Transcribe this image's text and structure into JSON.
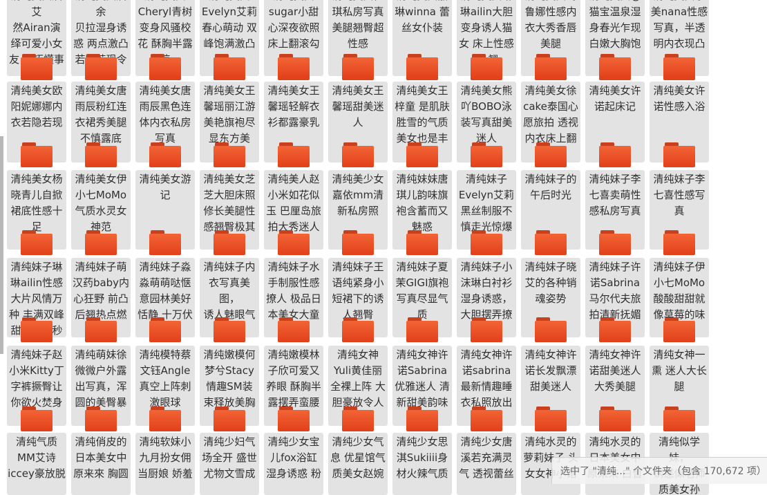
{
  "folders": [
    {
      "label": "清纯美女眉艾\n然Airan演\n绎可爱小女\n友 乖巧懂事"
    },
    {
      "label": "清纯美女眉余\n贝拉湿身诱\n惑 两点激凸\n若隐若现令\n人 张"
    },
    {
      "label": "清纯美女\nCheryl青树\n变身风骚校\n花 酥胸半露\n惊"
    },
    {
      "label": "清纯美女\nEvelyn艾莉\n春心萌动 双\n峰饱满激凸"
    },
    {
      "label": "清纯美女\nsugar小甜\n心深夜欲照\n床上翻滚勾"
    },
    {
      "label": "清纯美女佳\n琪私房写真\n美腿翘臀超\n性感"
    },
    {
      "label": "清纯美女嘉\n琳winna 蕾\n丝女仆装"
    },
    {
      "label": "清纯美女琳\n琳ailin大胆\n变身诱人猫\n女 床上性感\n放 翘"
    },
    {
      "label": "清纯美女玛\n鲁娜性感内\n衣大秀香唇\n美腿"
    },
    {
      "label": "清纯美女@\n猫宝温泉湿\n身春光乍现\n白嫩大胸饱"
    },
    {
      "label": "清纯美女奈\n美nana性感\n写真，半透\n明内衣现凸"
    },
    {
      "label": "清纯美女欧\n阳妮娜娜内\n衣若隐若现"
    },
    {
      "label": "清纯美女唐\n雨辰粉红连\n衣裙秀美腿\n不慎露底"
    },
    {
      "label": "清纯美女唐\n雨辰黑色连\n体内衣私房\n写真"
    },
    {
      "label": "清纯美女王\n馨瑶丽江游\n美艳旗袍尽\n显东方美"
    },
    {
      "label": "清纯美女王\n馨瑶轻解衣\n衫都露豪乳"
    },
    {
      "label": "清纯美女王\n馨瑶甜美迷\n人"
    },
    {
      "label": "清纯美女王\n梓童 是肌肤\n胜雪的气质\n美女也是丰\n满 尤"
    },
    {
      "label": "清纯美女熊\n吖BOBO泳\n装写真甜美\n迷人"
    },
    {
      "label": "清纯美女徐\ncake泰国心\n愿旅拍 透视\n内衣床上翻\n滚 利"
    },
    {
      "label": "清纯美女许\n诺起床记"
    },
    {
      "label": "清纯美女许\n诺性感入浴"
    },
    {
      "label": "清纯美女杨\n晓青儿自掀\n裙底性感十\n足"
    },
    {
      "label": "清纯美女伊\n小七MoMo\n气质水灵女\n神范"
    },
    {
      "label": "清纯美女游\n记"
    },
    {
      "label": "清纯美女芝\n芝大胆床照\n修长美腿性\n感翘臀极其"
    },
    {
      "label": "清纯美人赵\n小米如花似\n玉 巴厘岛旅\n拍大秀迷人\n美 臀"
    },
    {
      "label": "清纯美少女\n嘉依mm清\n新私房照"
    },
    {
      "label": "清纯妹妹唐\n琪儿韵味旗\n袍含蓄而又\n魅惑"
    },
    {
      "label": "清纯妹子\nEvelyn艾莉\n黑丝制服不\n慎走光惊爆"
    },
    {
      "label": "清纯妹子的\n午后时光"
    },
    {
      "label": "清纯妹子李\n七喜卖萌性\n感私房写真"
    },
    {
      "label": "清纯妹子李\n七喜性感写\n真"
    },
    {
      "label": "清纯妹子琳\n琳ailin性感\n大片风情万\n种 丰满双峰\n甜美笑容秒\n杀宅男"
    },
    {
      "label": "清纯妹子萌\n汉药baby内\n心狂野 前凸\n后翘热点燃欲"
    },
    {
      "label": "清纯妹子淼\n淼萌萌哒惬\n意园林美好\n恬静 十万伏\n特 迷"
    },
    {
      "label": "清纯妹子内\n衣写真美图，\n诱人魅眼气\n质迷人"
    },
    {
      "label": "清纯妹子水\n手制服性感\n撩人 极品日\n本美女大童"
    },
    {
      "label": "清纯妹子王\n语纯紧身小\n短裙下的诱\n人翘臀"
    },
    {
      "label": "清纯妹子夏\n茉GIGI旗袍\n写真尽显气\n质"
    },
    {
      "label": "清纯妹子小\n沫琳白衬衫\n湿身诱惑，\n大胆摆弄撩"
    },
    {
      "label": "清纯妹子晓\n艾的各种销\n魂姿势"
    },
    {
      "label": "清纯妹子许\n诺Sabrina\n马尔代夫旅\n拍清新抚媚"
    },
    {
      "label": "清纯妹子伊\n小七MoMo\n酸酸甜甜就\n像草莓的味"
    },
    {
      "label": "清纯妹子赵\n小米Kitty丁\n字裤撅臀让\n你欲火焚身"
    },
    {
      "label": "清纯萌妹徐\n微微户外露\n出写真，浑\n圆的美臀暴"
    },
    {
      "label": "清纯模特蔡\n文钰Angle\n真空上阵刺\n激眼球"
    },
    {
      "label": "清纯嫩模何\n梦兮Stacy\n情趣SM装\n束释放美胸\n翘 性"
    },
    {
      "label": "清纯嫩模林\n子欣可爱又\n养眼 酥胸半\n露摆弄蛮腰"
    },
    {
      "label": "清纯女神\nYuli黄佳丽\n全裸上阵 大\n胆豪放令人\n血 张"
    },
    {
      "label": "清纯女神许\n诺Sabrina\n优雅迷人 清\n新甜美韵味"
    },
    {
      "label": "清纯女神许\n诺sabrina\n最新情趣睡\n衣私照放出\n曼 甜"
    },
    {
      "label": "清纯女神许\n诺长发飘漂\n甜美迷人"
    },
    {
      "label": "清纯女神许\n诺甜美迷人\n大秀美腿"
    },
    {
      "label": "清纯女神一\n熏 迷人大长\n腿"
    },
    {
      "label": "清纯气质\nMM艾诗\niccey豪放脱"
    },
    {
      "label": "清纯俏皮的\n日本美女中\n原来來 胸圆"
    },
    {
      "label": "清纯软妹小\n九月扮女佣\n当厨娘 娇羞"
    },
    {
      "label": "清纯少妇气\n场全开 盛世\n尤物文雪成"
    },
    {
      "label": "清纯少女宝\n儿fox浴缸\n湿身诱惑 粉"
    },
    {
      "label": "清纯少女气\n息 优星馆气\n质美女赵婉"
    },
    {
      "label": "清纯少女思\n淇Sukiiii身\n材火辣气质"
    },
    {
      "label": "清纯少女唐\n溪若充满灵\n气 透视蕾丝"
    },
    {
      "label": "清纯水灵的\n萝莉妹子 头\n女女神小馆"
    },
    {
      "label": "清纯水灵的\n日本美女中\n原来來 白皙"
    },
    {
      "label": "清纯似学妹，\n诱惑似老师\n  质美女孙"
    }
  ],
  "status": {
    "text": "选中了 \"清纯...\" 个文件夹（包含 170,672 项）"
  }
}
